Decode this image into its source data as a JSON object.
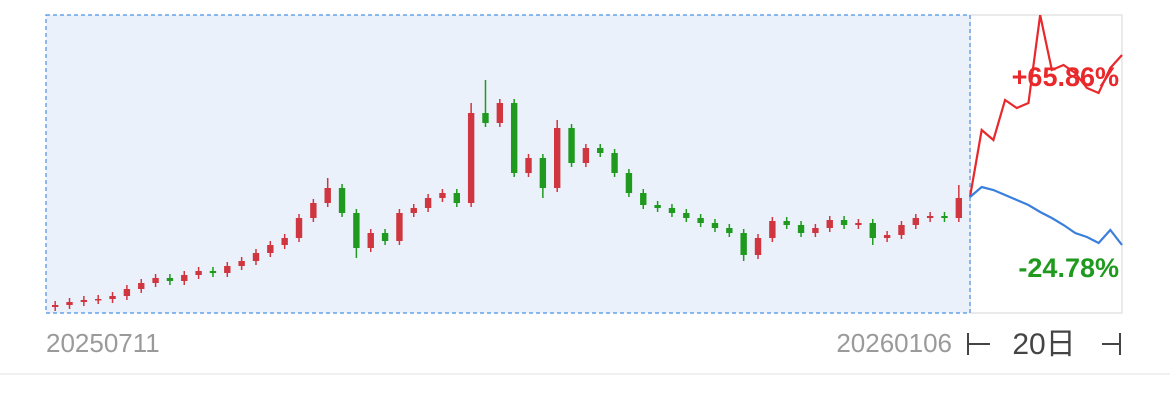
{
  "chart_data": {
    "type": "candlestick",
    "start_label": "20250711",
    "end_label": "20260106",
    "horizon_label": "20日",
    "ylim": [
      0,
      298
    ],
    "up_color": "#d0363f",
    "down_color": "#1f9a1f",
    "open": [
      6,
      8,
      11,
      13,
      14,
      17,
      24,
      30,
      35,
      32,
      38,
      42,
      40,
      47,
      52,
      60,
      68,
      75,
      95,
      110,
      125,
      100,
      65,
      80,
      72,
      100,
      105,
      115,
      120,
      110,
      200,
      190,
      210,
      140,
      155,
      125,
      185,
      150,
      165,
      160,
      140,
      120,
      108,
      105,
      100,
      95,
      90,
      85,
      80,
      58,
      75,
      92,
      88,
      80,
      85,
      93,
      88,
      90,
      75,
      78,
      88,
      95,
      97,
      95
    ],
    "high": [
      12,
      15,
      17,
      18,
      21,
      28,
      34,
      39,
      39,
      42,
      46,
      46,
      51,
      56,
      64,
      72,
      79,
      99,
      114,
      135,
      129,
      104,
      84,
      84,
      104,
      109,
      119,
      124,
      124,
      210,
      233,
      214,
      214,
      159,
      159,
      193,
      189,
      169,
      169,
      164,
      144,
      124,
      112,
      109,
      104,
      99,
      94,
      89,
      84,
      79,
      96,
      96,
      92,
      89,
      97,
      97,
      94,
      94,
      82,
      92,
      99,
      101,
      101,
      128
    ],
    "low": [
      2,
      4,
      7,
      9,
      10,
      13,
      20,
      26,
      28,
      28,
      34,
      36,
      36,
      43,
      48,
      56,
      64,
      71,
      91,
      106,
      96,
      55,
      61,
      68,
      68,
      96,
      101,
      111,
      106,
      106,
      186,
      186,
      136,
      136,
      115,
      121,
      146,
      146,
      156,
      136,
      116,
      104,
      101,
      96,
      91,
      86,
      81,
      76,
      52,
      54,
      71,
      84,
      76,
      76,
      81,
      84,
      84,
      68,
      71,
      74,
      84,
      91,
      91,
      91
    ],
    "close": [
      8,
      11,
      13,
      14,
      17,
      24,
      30,
      35,
      32,
      38,
      42,
      40,
      47,
      52,
      60,
      68,
      75,
      95,
      110,
      125,
      100,
      65,
      80,
      72,
      100,
      105,
      115,
      120,
      110,
      200,
      190,
      210,
      140,
      155,
      125,
      185,
      150,
      165,
      160,
      140,
      120,
      108,
      105,
      100,
      95,
      90,
      85,
      80,
      58,
      75,
      92,
      88,
      80,
      85,
      93,
      88,
      90,
      75,
      78,
      88,
      95,
      97,
      95,
      115
    ],
    "projections": [
      {
        "color": "#e8282b",
        "values": [
          116,
          183,
          173,
          213,
          205,
          210,
          298,
          243,
          248,
          240,
          225,
          220,
          245,
          258
        ],
        "value": 65.86,
        "value_label": "+65.86%"
      },
      {
        "color": "#3a7fdc",
        "values": [
          116,
          126,
          123,
          118,
          113,
          108,
          101,
          95,
          88,
          80,
          76,
          70,
          83,
          68
        ],
        "value": -24.78,
        "value_label": "-24.78%",
        "label_color": "#1f9a1f"
      }
    ]
  }
}
